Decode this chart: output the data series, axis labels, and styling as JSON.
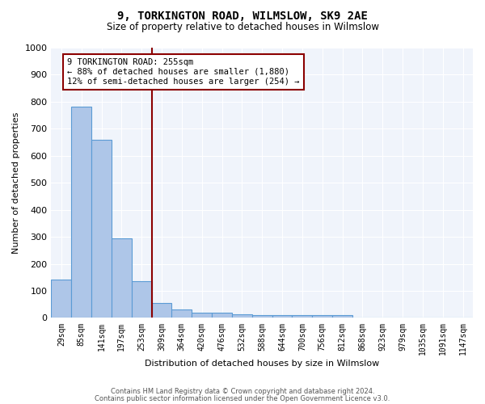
{
  "title": "9, TORKINGTON ROAD, WILMSLOW, SK9 2AE",
  "subtitle": "Size of property relative to detached houses in Wilmslow",
  "xlabel": "Distribution of detached houses by size in Wilmslow",
  "ylabel": "Number of detached properties",
  "bar_values": [
    143,
    783,
    660,
    295,
    135,
    55,
    30,
    20,
    18,
    13,
    9,
    10,
    10,
    9,
    10,
    0,
    0,
    0,
    0,
    0,
    0
  ],
  "bin_labels": [
    "29sqm",
    "85sqm",
    "141sqm",
    "197sqm",
    "253sqm",
    "309sqm",
    "364sqm",
    "420sqm",
    "476sqm",
    "532sqm",
    "588sqm",
    "644sqm",
    "700sqm",
    "756sqm",
    "812sqm",
    "868sqm",
    "923sqm",
    "979sqm",
    "1035sqm",
    "1091sqm",
    "1147sqm"
  ],
  "bar_color": "#aec6e8",
  "bar_edge_color": "#5b9bd5",
  "ylim": [
    0,
    1000
  ],
  "yticks": [
    0,
    100,
    200,
    300,
    400,
    500,
    600,
    700,
    800,
    900,
    1000
  ],
  "property_line_x": 4.5,
  "property_line_color": "#8b0000",
  "annotation_box_color": "#8b0000",
  "annotation_text_line1": "9 TORKINGTON ROAD: 255sqm",
  "annotation_text_line2": "← 88% of detached houses are smaller (1,880)",
  "annotation_text_line3": "12% of semi-detached houses are larger (254) →",
  "footer_line1": "Contains HM Land Registry data © Crown copyright and database right 2024.",
  "footer_line2": "Contains public sector information licensed under the Open Government Licence v3.0.",
  "background_color": "#f0f4fb"
}
